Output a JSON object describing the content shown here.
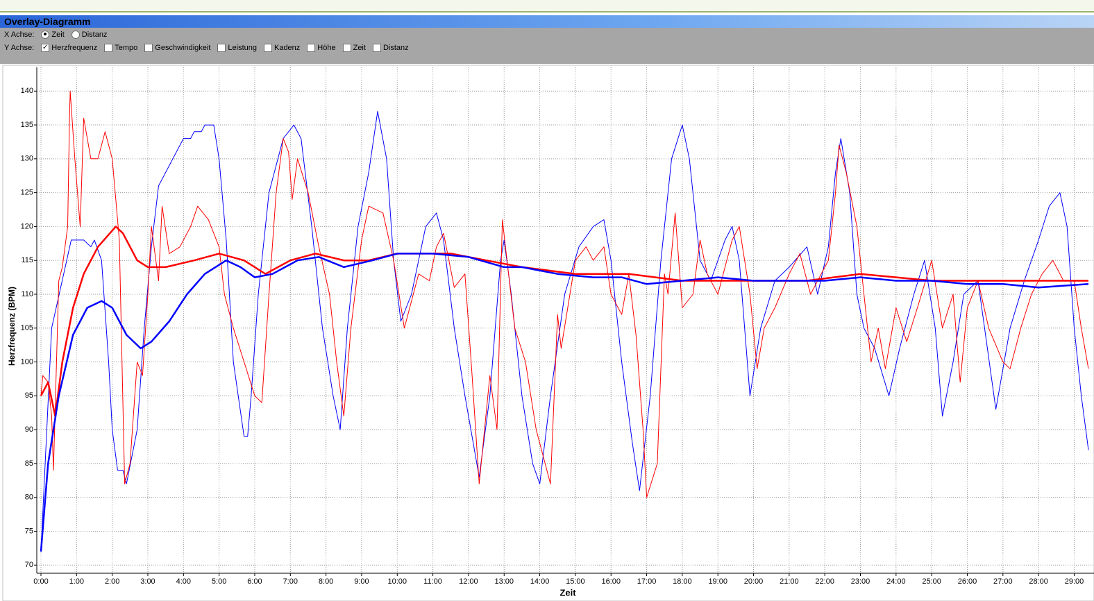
{
  "header": {
    "title": "Overlay-Diagramm"
  },
  "x_axis_options": {
    "label": "X Achse:",
    "options": [
      "Zeit",
      "Distanz"
    ],
    "selected_index": 0
  },
  "y_axis_options": {
    "label": "Y Achse:",
    "options": [
      "Herzfrequenz",
      "Tempo",
      "Geschwindigkeit",
      "Leistung",
      "Kadenz",
      "Höhe",
      "Zeit",
      "Distanz"
    ],
    "checked": [
      true,
      false,
      false,
      false,
      false,
      false,
      false,
      false
    ]
  },
  "chart_data": {
    "type": "line",
    "xlabel": "Zeit",
    "ylabel": "Herzfrequenz (BPM)",
    "xlim": [
      0,
      29.4
    ],
    "ylim": [
      69,
      143
    ],
    "grid": true,
    "xticks": [
      {
        "value": 0,
        "label": "0:00"
      },
      {
        "value": 1,
        "label": "1:00"
      },
      {
        "value": 2,
        "label": "2:00"
      },
      {
        "value": 3,
        "label": "3:00"
      },
      {
        "value": 4,
        "label": "4:00"
      },
      {
        "value": 5,
        "label": "5:00"
      },
      {
        "value": 6,
        "label": "6:00"
      },
      {
        "value": 7,
        "label": "7:00"
      },
      {
        "value": 8,
        "label": "8:00"
      },
      {
        "value": 9,
        "label": "9:00"
      },
      {
        "value": 10,
        "label": "10:00"
      },
      {
        "value": 11,
        "label": "11:00"
      },
      {
        "value": 12,
        "label": "12:00"
      },
      {
        "value": 13,
        "label": "13:00"
      },
      {
        "value": 14,
        "label": "14:00"
      },
      {
        "value": 15,
        "label": "15:00"
      },
      {
        "value": 16,
        "label": "16:00"
      },
      {
        "value": 17,
        "label": "17:00"
      },
      {
        "value": 18,
        "label": "18:00"
      },
      {
        "value": 19,
        "label": "19:00"
      },
      {
        "value": 20,
        "label": "20:00"
      },
      {
        "value": 21,
        "label": "21:00"
      },
      {
        "value": 22,
        "label": "22:00"
      },
      {
        "value": 23,
        "label": "23:00"
      },
      {
        "value": 24,
        "label": "24:00"
      },
      {
        "value": 25,
        "label": "25:00"
      },
      {
        "value": 26,
        "label": "26:00"
      },
      {
        "value": 27,
        "label": "27:00"
      },
      {
        "value": 28,
        "label": "28:00"
      },
      {
        "value": 29,
        "label": "29:00"
      }
    ],
    "yticks": [
      70,
      75,
      80,
      85,
      90,
      95,
      100,
      105,
      110,
      115,
      120,
      125,
      130,
      135,
      140
    ],
    "series": [
      {
        "color": "#0000ff",
        "linewidth": 1,
        "x": [
          0,
          0.3,
          0.85,
          1.2,
          1.4,
          1.5,
          1.7,
          1.9,
          2.0,
          2.15,
          2.3,
          2.4,
          2.7,
          2.9,
          3.1,
          3.3,
          3.6,
          4.0,
          4.2,
          4.3,
          4.5,
          4.6,
          4.85,
          5.0,
          5.2,
          5.4,
          5.7,
          5.8,
          5.9,
          6.1,
          6.4,
          6.8,
          7.1,
          7.3,
          7.6,
          7.9,
          8.2,
          8.4,
          8.6,
          8.9,
          9.2,
          9.45,
          9.7,
          9.9,
          10.1,
          10.4,
          10.8,
          11.1,
          11.3,
          11.6,
          11.9,
          12.3,
          12.6,
          12.9,
          13.0,
          13.2,
          13.5,
          13.8,
          14.0,
          14.3,
          14.7,
          15.1,
          15.5,
          15.8,
          16.0,
          16.3,
          16.6,
          16.8,
          17.1,
          17.4,
          17.7,
          18.0,
          18.2,
          18.5,
          18.8,
          19.2,
          19.4,
          19.6,
          19.9,
          20.2,
          20.6,
          21.0,
          21.5,
          21.8,
          22.1,
          22.3,
          22.45,
          22.7,
          22.9,
          23.1,
          23.4,
          23.8,
          24.1,
          24.5,
          24.8,
          25.1,
          25.3,
          25.6,
          25.9,
          26.3,
          26.8,
          27.2,
          27.6,
          28.0,
          28.3,
          28.6,
          28.8,
          29.0,
          29.2,
          29.4
        ],
        "values": [
          72,
          105,
          118,
          118,
          117,
          118,
          115,
          100,
          90,
          84,
          84,
          82,
          90,
          105,
          117,
          126,
          129,
          133,
          133,
          134,
          134,
          135,
          135,
          130,
          118,
          100,
          89,
          89,
          95,
          110,
          125,
          133,
          135,
          133,
          120,
          105,
          95,
          90,
          105,
          120,
          128,
          137,
          130,
          115,
          106,
          110,
          120,
          122,
          118,
          105,
          95,
          83,
          95,
          115,
          118,
          110,
          95,
          85,
          82,
          95,
          110,
          117,
          120,
          121,
          115,
          100,
          88,
          81,
          95,
          115,
          130,
          135,
          130,
          115,
          112,
          118,
          120,
          115,
          95,
          105,
          112,
          114,
          117,
          110,
          117,
          128,
          133,
          125,
          110,
          105,
          102,
          95,
          102,
          110,
          115,
          105,
          92,
          100,
          110,
          112,
          93,
          105,
          112,
          118,
          123,
          125,
          120,
          105,
          95,
          87
        ]
      },
      {
        "color": "#ff0000",
        "linewidth": 1,
        "x": [
          0,
          0.05,
          0.2,
          0.3,
          0.35,
          0.5,
          0.6,
          0.75,
          0.8,
          0.82,
          0.95,
          1.1,
          1.2,
          1.4,
          1.6,
          1.8,
          2.0,
          2.2,
          2.35,
          2.5,
          2.7,
          2.85,
          3.0,
          3.1,
          3.3,
          3.4,
          3.6,
          3.9,
          4.2,
          4.4,
          4.7,
          5.0,
          5.15,
          5.4,
          5.7,
          6.0,
          6.2,
          6.4,
          6.6,
          6.8,
          6.95,
          7.05,
          7.2,
          7.5,
          7.8,
          8.1,
          8.3,
          8.5,
          8.7,
          9.0,
          9.2,
          9.6,
          9.9,
          10.2,
          10.6,
          10.9,
          11.1,
          11.3,
          11.6,
          11.9,
          12.1,
          12.3,
          12.6,
          12.8,
          12.95,
          13.3,
          13.6,
          13.9,
          14.3,
          14.5,
          14.6,
          15.0,
          15.3,
          15.5,
          15.8,
          16.0,
          16.3,
          16.5,
          16.7,
          16.9,
          17.0,
          17.3,
          17.5,
          17.6,
          17.8,
          18.0,
          18.3,
          18.5,
          18.7,
          19.0,
          19.4,
          19.6,
          19.9,
          20.1,
          20.3,
          20.6,
          21.0,
          21.3,
          21.6,
          21.9,
          22.1,
          22.3,
          22.4,
          22.6,
          22.9,
          23.1,
          23.3,
          23.5,
          23.7,
          24.0,
          24.3,
          24.6,
          25.0,
          25.3,
          25.6,
          25.8,
          26.0,
          26.3,
          26.6,
          27.0,
          27.2,
          27.5,
          27.8,
          28.1,
          28.4,
          28.7,
          29.0,
          29.2,
          29.4
        ],
        "values": [
          95,
          98,
          97,
          92,
          84,
          112,
          114,
          120,
          136,
          140,
          130,
          120,
          136,
          130,
          130,
          134,
          130,
          118,
          82,
          85,
          100,
          98,
          110,
          120,
          112,
          123,
          116,
          117,
          120,
          123,
          121,
          117,
          110,
          105,
          100,
          95,
          94,
          110,
          125,
          133,
          131,
          124,
          130,
          125,
          117,
          110,
          100,
          92,
          105,
          118,
          123,
          122,
          115,
          105,
          113,
          112,
          117,
          119,
          111,
          113,
          98,
          82,
          98,
          90,
          121,
          105,
          100,
          90,
          82,
          107,
          102,
          115,
          117,
          115,
          117,
          110,
          107,
          113,
          104,
          90,
          80,
          85,
          113,
          110,
          122,
          108,
          110,
          118,
          113,
          110,
          118,
          120,
          110,
          99,
          105,
          108,
          113,
          116,
          110,
          113,
          115,
          125,
          132,
          128,
          120,
          110,
          100,
          105,
          99,
          108,
          103,
          108,
          115,
          105,
          110,
          97,
          108,
          112,
          105,
          100,
          99,
          105,
          110,
          113,
          115,
          112,
          112,
          105,
          99
        ]
      },
      {
        "color": "#ff0000",
        "linewidth": 2.5,
        "x": [
          0,
          0.2,
          0.4,
          0.6,
          0.9,
          1.2,
          1.6,
          2.1,
          2.3,
          2.7,
          3.0,
          3.5,
          4.3,
          5.0,
          5.7,
          6.3,
          7.0,
          7.7,
          8.5,
          9.2,
          10.0,
          11.5,
          12.5,
          13.5,
          15.0,
          16.5,
          18.0,
          20.0,
          21.5,
          23.0,
          25.0,
          26.5,
          28.0,
          29.4
        ],
        "values": [
          95,
          97,
          92,
          100,
          108,
          113,
          117,
          120,
          119,
          115,
          114,
          114,
          115,
          116,
          115,
          113,
          115,
          116,
          115,
          115,
          116,
          116,
          115,
          114,
          113,
          113,
          112,
          112,
          112,
          113,
          112,
          112,
          112,
          112
        ]
      },
      {
        "color": "#0000ff",
        "linewidth": 2.5,
        "x": [
          0,
          0.2,
          0.5,
          0.9,
          1.3,
          1.7,
          2.0,
          2.4,
          2.8,
          3.1,
          3.6,
          4.1,
          4.6,
          5.2,
          5.6,
          6.0,
          6.5,
          7.2,
          7.8,
          8.5,
          9.3,
          10.0,
          11.0,
          12.0,
          13.0,
          13.5,
          14.5,
          15.5,
          16.3,
          17.0,
          18.0,
          19.0,
          20.0,
          21.0,
          22.0,
          23.0,
          24.0,
          25.0,
          26.0,
          27.0,
          28.0,
          29.4
        ],
        "values": [
          72,
          85,
          95,
          104,
          108,
          109,
          108,
          104,
          102,
          103,
          106,
          110,
          113,
          115,
          114,
          112.5,
          113,
          115,
          115.5,
          114,
          115,
          116,
          116,
          115.5,
          114,
          114,
          113,
          112.5,
          112.5,
          111.5,
          112,
          112.5,
          112,
          112,
          112,
          112.5,
          112,
          112,
          111.5,
          111.5,
          111,
          111.5
        ]
      }
    ]
  }
}
